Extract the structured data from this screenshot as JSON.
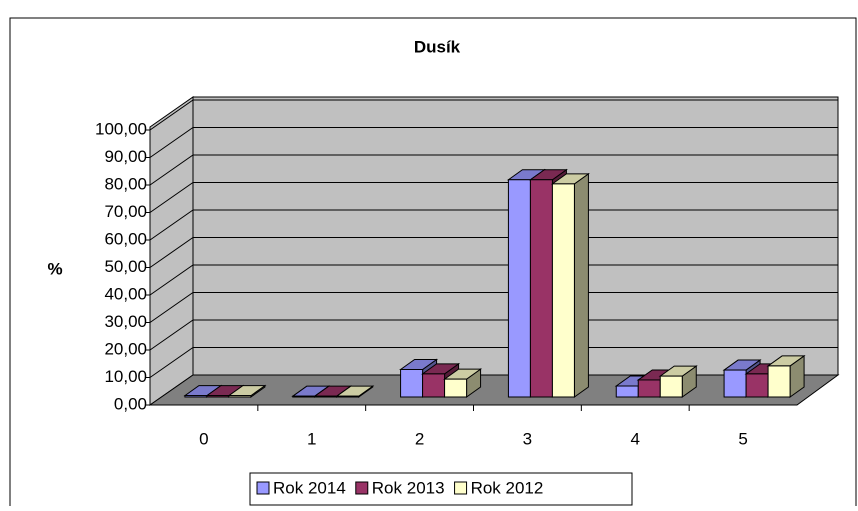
{
  "chart_data": {
    "type": "bar3d",
    "title": "Dusík",
    "y_label": "%",
    "categories": [
      "0",
      "1",
      "2",
      "3",
      "4",
      "5"
    ],
    "series": [
      {
        "name": "Rok 2014",
        "color": "#9999ff",
        "values": [
          0.5,
          0.3,
          10,
          79,
          4,
          9.8
        ]
      },
      {
        "name": "Rok 2013",
        "color": "#993366",
        "values": [
          0.5,
          0.3,
          8.4,
          79,
          6.2,
          8.4
        ]
      },
      {
        "name": "Rok 2012",
        "color": "#ffffcc",
        "values": [
          0.5,
          0.3,
          6.5,
          77.5,
          7.6,
          11.3
        ]
      }
    ],
    "ylim": [
      0,
      100
    ],
    "yticks": [
      {
        "value": 0,
        "label": "0,00"
      },
      {
        "value": 10,
        "label": "10,00"
      },
      {
        "value": 20,
        "label": "20,00"
      },
      {
        "value": 30,
        "label": "30,00"
      },
      {
        "value": 40,
        "label": "40,00"
      },
      {
        "value": 50,
        "label": "50,00"
      },
      {
        "value": 60,
        "label": "60,00"
      },
      {
        "value": 70,
        "label": "70,00"
      },
      {
        "value": 80,
        "label": "80,00"
      },
      {
        "value": 90,
        "label": "90,00"
      },
      {
        "value": 100,
        "label": "100,00"
      }
    ],
    "grid": true,
    "legend": "bottom"
  }
}
